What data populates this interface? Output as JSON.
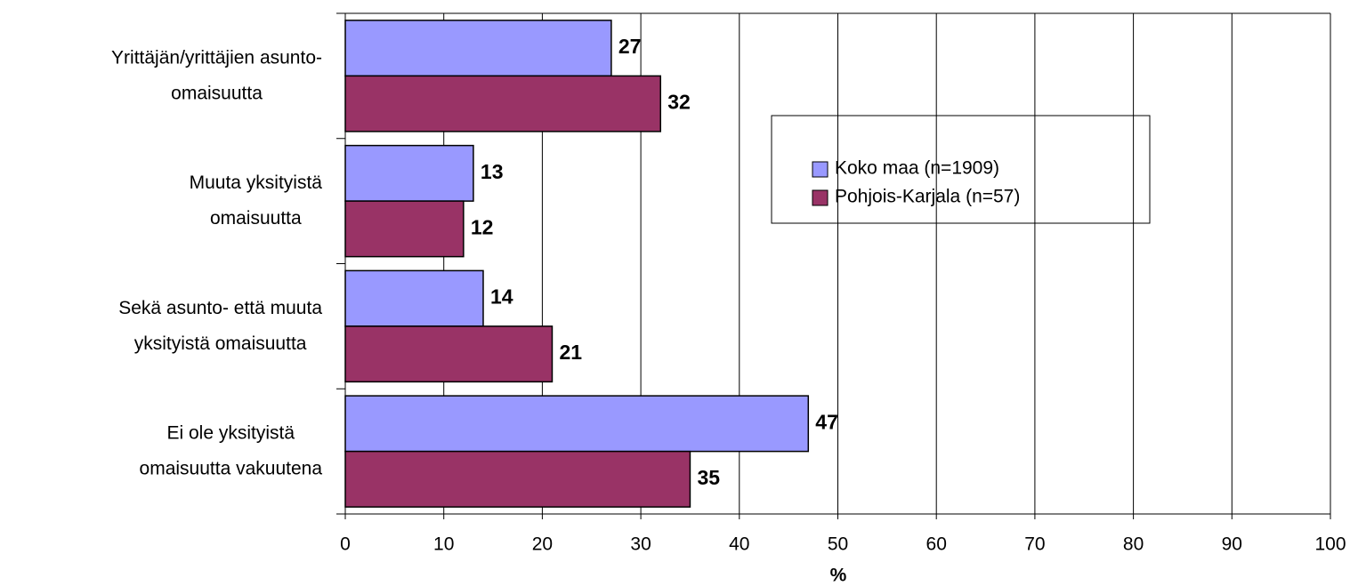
{
  "chart_data": {
    "type": "hbar",
    "categories": [
      "Yrittäjän/yrittäjien asunto-\nomaisuutta",
      "Muuta yksityistä\nomaisuutta",
      "Sekä asunto- että muuta\nyksityistä omaisuutta",
      "Ei ole yksityistä\nomaisuutta vakuutena"
    ],
    "series": [
      {
        "name": "Koko maa (n=1909)",
        "color": "#9999ff",
        "values": [
          27,
          13,
          14,
          47
        ]
      },
      {
        "name": "Pohjois-Karjala (n=57)",
        "color": "#993366",
        "values": [
          32,
          12,
          21,
          35
        ]
      }
    ],
    "xlim": [
      0,
      100
    ],
    "xticks": [
      0,
      10,
      20,
      30,
      40,
      50,
      60,
      70,
      80,
      90,
      100
    ],
    "x_label": "%",
    "grid": true,
    "legend": "upper center"
  }
}
